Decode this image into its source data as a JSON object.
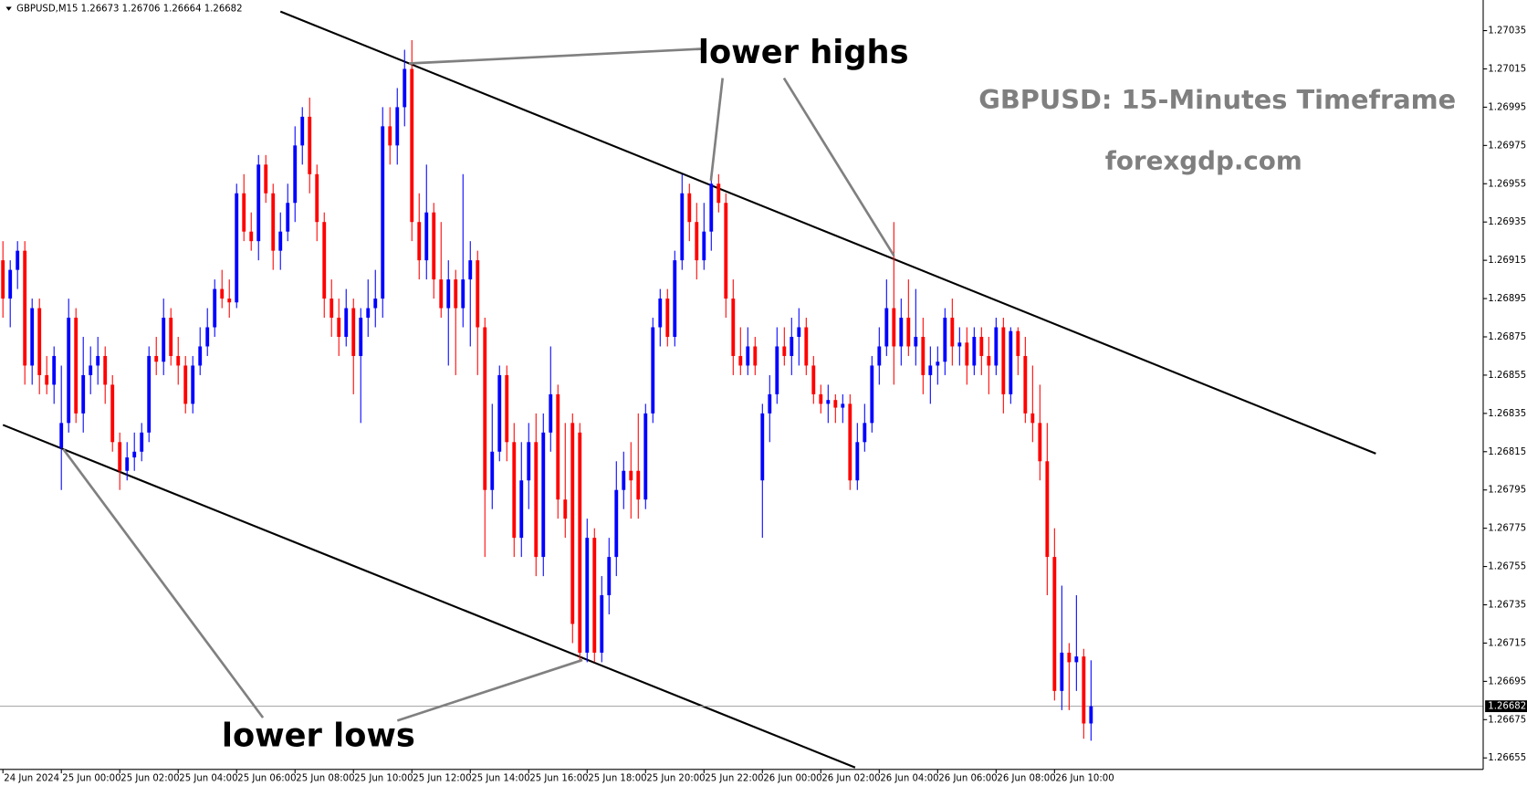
{
  "chart_data": {
    "type": "candlestick",
    "header": "GBPUSD,M15  1.26673 1.26706 1.26664 1.26682",
    "title": "GBPUSD: 15-Minutes Timeframe",
    "subtitle": "forexgdp.com",
    "annotations": [
      "lower highs",
      "lower lows"
    ],
    "up_color": "#0000ff",
    "down_color": "#ff0000",
    "categories": [
      "24 Jun 2024",
      null,
      null,
      null,
      null,
      null,
      null,
      null,
      "25 Jun 00:00",
      null,
      null,
      null,
      null,
      null,
      null,
      null,
      "25 Jun 02:00",
      null,
      null,
      null,
      null,
      null,
      null,
      null,
      "25 Jun 04:00",
      null,
      null,
      null,
      null,
      null,
      null,
      null,
      "25 Jun 06:00",
      null,
      null,
      null,
      null,
      null,
      null,
      null,
      "25 Jun 08:00",
      null,
      null,
      null,
      null,
      null,
      null,
      null,
      "25 Jun 10:00",
      null,
      null,
      null,
      null,
      null,
      null,
      null,
      "25 Jun 12:00",
      null,
      null,
      null,
      null,
      null,
      null,
      null,
      "25 Jun 14:00",
      null,
      null,
      null,
      null,
      null,
      null,
      null,
      "25 Jun 16:00",
      null,
      null,
      null,
      null,
      null,
      null,
      null,
      "25 Jun 18:00",
      null,
      null,
      null,
      null,
      null,
      null,
      null,
      "25 Jun 20:00",
      null,
      null,
      null,
      null,
      null,
      null,
      null,
      "25 Jun 22:00",
      null,
      null,
      null,
      null,
      null,
      null,
      null,
      "26 Jun 00:00",
      null,
      null,
      null,
      null,
      null,
      null,
      null,
      "26 Jun 02:00",
      null,
      null,
      null,
      null,
      null,
      null,
      null,
      "26 Jun 04:00",
      null,
      null,
      null,
      null,
      null,
      null,
      null,
      "26 Jun 06:00",
      null,
      null,
      null,
      null,
      null,
      null,
      null,
      "26 Jun 08:00",
      null,
      null,
      null,
      null,
      null,
      null,
      null,
      "26 Jun 10:00",
      null,
      null,
      null,
      null,
      null
    ],
    "ohlc": [
      [
        1.26915,
        1.26925,
        1.26885,
        1.26895
      ],
      [
        1.26895,
        1.26915,
        1.2688,
        1.2691
      ],
      [
        1.2691,
        1.26925,
        1.269,
        1.2692
      ],
      [
        1.2692,
        1.26925,
        1.2685,
        1.2686
      ],
      [
        1.2686,
        1.26895,
        1.2685,
        1.2689
      ],
      [
        1.2689,
        1.26895,
        1.26845,
        1.26855
      ],
      [
        1.26855,
        1.26865,
        1.26845,
        1.2685
      ],
      [
        1.2685,
        1.2687,
        1.2684,
        1.26865
      ],
      [
        1.26817,
        1.2686,
        1.26795,
        1.2683
      ],
      [
        1.2683,
        1.26895,
        1.26825,
        1.26885
      ],
      [
        1.26885,
        1.2689,
        1.2683,
        1.26835
      ],
      [
        1.26835,
        1.26875,
        1.26825,
        1.26855
      ],
      [
        1.26855,
        1.2687,
        1.26845,
        1.2686
      ],
      [
        1.2686,
        1.26875,
        1.2685,
        1.26865
      ],
      [
        1.26865,
        1.2687,
        1.2684,
        1.2685
      ],
      [
        1.2685,
        1.26855,
        1.26815,
        1.2682
      ],
      [
        1.2682,
        1.26825,
        1.26795,
        1.26805
      ],
      [
        1.26805,
        1.2682,
        1.268,
        1.26812
      ],
      [
        1.26812,
        1.26825,
        1.26805,
        1.26815
      ],
      [
        1.26815,
        1.2683,
        1.2681,
        1.26825
      ],
      [
        1.26825,
        1.2687,
        1.2682,
        1.26865
      ],
      [
        1.26865,
        1.26875,
        1.26855,
        1.26862
      ],
      [
        1.26862,
        1.26895,
        1.26855,
        1.26885
      ],
      [
        1.26885,
        1.2689,
        1.2686,
        1.26865
      ],
      [
        1.26865,
        1.26875,
        1.2685,
        1.2686
      ],
      [
        1.2686,
        1.26865,
        1.26835,
        1.2684
      ],
      [
        1.2684,
        1.26865,
        1.26835,
        1.2686
      ],
      [
        1.2686,
        1.2688,
        1.26855,
        1.2687
      ],
      [
        1.2687,
        1.2689,
        1.26865,
        1.2688
      ],
      [
        1.2688,
        1.26905,
        1.26875,
        1.269
      ],
      [
        1.269,
        1.2691,
        1.2689,
        1.26895
      ],
      [
        1.26895,
        1.26905,
        1.26885,
        1.26893
      ],
      [
        1.26893,
        1.26955,
        1.2689,
        1.2695
      ],
      [
        1.2695,
        1.2696,
        1.26925,
        1.2693
      ],
      [
        1.2693,
        1.2694,
        1.2692,
        1.26925
      ],
      [
        1.26925,
        1.2697,
        1.26915,
        1.26965
      ],
      [
        1.26965,
        1.2697,
        1.26945,
        1.2695
      ],
      [
        1.2695,
        1.26955,
        1.2691,
        1.2692
      ],
      [
        1.2692,
        1.2694,
        1.2691,
        1.2693
      ],
      [
        1.2693,
        1.26955,
        1.26925,
        1.26945
      ],
      [
        1.26945,
        1.26985,
        1.26935,
        1.26975
      ],
      [
        1.26975,
        1.26995,
        1.26965,
        1.2699
      ],
      [
        1.2699,
        1.27,
        1.2695,
        1.2696
      ],
      [
        1.2696,
        1.26965,
        1.26925,
        1.26935
      ],
      [
        1.26935,
        1.2694,
        1.26885,
        1.26895
      ],
      [
        1.26895,
        1.26905,
        1.26875,
        1.26885
      ],
      [
        1.26885,
        1.26895,
        1.26865,
        1.26875
      ],
      [
        1.26875,
        1.269,
        1.2687,
        1.2689
      ],
      [
        1.2689,
        1.26895,
        1.26845,
        1.26865
      ],
      [
        1.26865,
        1.2689,
        1.2683,
        1.26885
      ],
      [
        1.26885,
        1.26905,
        1.26875,
        1.2689
      ],
      [
        1.2689,
        1.2691,
        1.2688,
        1.26895
      ],
      [
        1.26895,
        1.26995,
        1.26885,
        1.26985
      ],
      [
        1.26985,
        1.26995,
        1.26965,
        1.26975
      ],
      [
        1.26975,
        1.27005,
        1.26965,
        1.26995
      ],
      [
        1.26995,
        1.27025,
        1.26985,
        1.27015
      ],
      [
        1.27015,
        1.2703,
        1.26925,
        1.26935
      ],
      [
        1.26935,
        1.2695,
        1.26905,
        1.26915
      ],
      [
        1.26915,
        1.26965,
        1.26905,
        1.2694
      ],
      [
        1.2694,
        1.26945,
        1.26895,
        1.26905
      ],
      [
        1.26905,
        1.26935,
        1.26885,
        1.2689
      ],
      [
        1.2689,
        1.26915,
        1.2686,
        1.26905
      ],
      [
        1.26905,
        1.2691,
        1.26855,
        1.2689
      ],
      [
        1.2689,
        1.2696,
        1.2688,
        1.26905
      ],
      [
        1.26905,
        1.26925,
        1.2687,
        1.26915
      ],
      [
        1.26915,
        1.2692,
        1.26855,
        1.2688
      ],
      [
        1.2688,
        1.26885,
        1.2676,
        1.26795
      ],
      [
        1.26795,
        1.2684,
        1.26785,
        1.26815
      ],
      [
        1.26815,
        1.2686,
        1.2681,
        1.26855
      ],
      [
        1.26855,
        1.2686,
        1.2681,
        1.2682
      ],
      [
        1.2682,
        1.2683,
        1.2676,
        1.2677
      ],
      [
        1.2677,
        1.2682,
        1.2676,
        1.268
      ],
      [
        1.268,
        1.2683,
        1.26785,
        1.2682
      ],
      [
        1.2682,
        1.26835,
        1.2675,
        1.2676
      ],
      [
        1.2676,
        1.26835,
        1.2675,
        1.26825
      ],
      [
        1.26825,
        1.2687,
        1.26815,
        1.26845
      ],
      [
        1.26845,
        1.2685,
        1.2678,
        1.2679
      ],
      [
        1.2679,
        1.2683,
        1.2677,
        1.2678
      ],
      [
        1.2683,
        1.26835,
        1.26715,
        1.26725
      ],
      [
        1.26825,
        1.2683,
        1.26705,
        1.2671
      ],
      [
        1.2671,
        1.2678,
        1.26705,
        1.2677
      ],
      [
        1.2677,
        1.26775,
        1.26705,
        1.2671
      ],
      [
        1.2671,
        1.2675,
        1.26705,
        1.2674
      ],
      [
        1.2674,
        1.2677,
        1.2673,
        1.2676
      ],
      [
        1.2676,
        1.2681,
        1.2675,
        1.26795
      ],
      [
        1.26795,
        1.26815,
        1.26785,
        1.26805
      ],
      [
        1.26805,
        1.2682,
        1.2678,
        1.268
      ],
      [
        1.26805,
        1.26835,
        1.2678,
        1.2679
      ],
      [
        1.2679,
        1.2684,
        1.26785,
        1.26835
      ],
      [
        1.26835,
        1.26885,
        1.2683,
        1.2688
      ],
      [
        1.2688,
        1.269,
        1.2687,
        1.26895
      ],
      [
        1.26895,
        1.269,
        1.2687,
        1.26875
      ],
      [
        1.26875,
        1.2692,
        1.2687,
        1.26915
      ],
      [
        1.26915,
        1.2696,
        1.2691,
        1.2695
      ],
      [
        1.2695,
        1.26955,
        1.26925,
        1.26935
      ],
      [
        1.26935,
        1.26945,
        1.26905,
        1.26915
      ],
      [
        1.26915,
        1.26945,
        1.2691,
        1.2693
      ],
      [
        1.2693,
        1.2696,
        1.2692,
        1.26955
      ],
      [
        1.26955,
        1.2696,
        1.2694,
        1.26945
      ],
      [
        1.26945,
        1.2695,
        1.26885,
        1.26895
      ],
      [
        1.26895,
        1.26905,
        1.26855,
        1.26865
      ],
      [
        1.26865,
        1.2688,
        1.26855,
        1.2686
      ],
      [
        1.2686,
        1.2688,
        1.26855,
        1.2687
      ],
      [
        1.2687,
        1.26875,
        1.26855,
        1.2686
      ],
      [
        1.268,
        1.2684,
        1.2677,
        1.26835
      ],
      [
        1.26835,
        1.26855,
        1.2682,
        1.26845
      ],
      [
        1.26845,
        1.2688,
        1.2684,
        1.2687
      ],
      [
        1.2687,
        1.2688,
        1.2686,
        1.26865
      ],
      [
        1.26865,
        1.26885,
        1.26855,
        1.26875
      ],
      [
        1.26875,
        1.2689,
        1.2686,
        1.2688
      ],
      [
        1.2688,
        1.26885,
        1.26855,
        1.2686
      ],
      [
        1.2686,
        1.26865,
        1.2684,
        1.26845
      ],
      [
        1.26845,
        1.2685,
        1.26835,
        1.2684
      ],
      [
        1.2684,
        1.2685,
        1.2683,
        1.26842
      ],
      [
        1.26842,
        1.26845,
        1.2683,
        1.26838
      ],
      [
        1.26838,
        1.26845,
        1.2683,
        1.2684
      ],
      [
        1.2684,
        1.26845,
        1.26795,
        1.268
      ],
      [
        1.268,
        1.2683,
        1.26795,
        1.2682
      ],
      [
        1.2682,
        1.2684,
        1.26815,
        1.2683
      ],
      [
        1.2683,
        1.26865,
        1.26825,
        1.2686
      ],
      [
        1.2686,
        1.2688,
        1.2685,
        1.2687
      ],
      [
        1.2687,
        1.26905,
        1.26865,
        1.2689
      ],
      [
        1.2689,
        1.26935,
        1.2685,
        1.2687
      ],
      [
        1.2687,
        1.26895,
        1.2686,
        1.26885
      ],
      [
        1.26885,
        1.26905,
        1.26865,
        1.2687
      ],
      [
        1.2687,
        1.269,
        1.2686,
        1.26875
      ],
      [
        1.26875,
        1.26885,
        1.26845,
        1.26855
      ],
      [
        1.26855,
        1.2687,
        1.2684,
        1.2686
      ],
      [
        1.2686,
        1.2687,
        1.2685,
        1.26862
      ],
      [
        1.26862,
        1.2689,
        1.26855,
        1.26885
      ],
      [
        1.26885,
        1.26895,
        1.2686,
        1.2687
      ],
      [
        1.2687,
        1.2688,
        1.2686,
        1.26872
      ],
      [
        1.26872,
        1.2688,
        1.2685,
        1.2686
      ],
      [
        1.2686,
        1.2688,
        1.26855,
        1.26875
      ],
      [
        1.26875,
        1.2688,
        1.26855,
        1.26865
      ],
      [
        1.26865,
        1.26875,
        1.26845,
        1.2686
      ],
      [
        1.2686,
        1.26885,
        1.26855,
        1.2688
      ],
      [
        1.2688,
        1.26885,
        1.26835,
        1.26845
      ],
      [
        1.26845,
        1.2688,
        1.2684,
        1.26878
      ],
      [
        1.26878,
        1.2688,
        1.26855,
        1.26865
      ],
      [
        1.26865,
        1.26875,
        1.2683,
        1.26835
      ],
      [
        1.26835,
        1.2686,
        1.2682,
        1.2683
      ],
      [
        1.2683,
        1.2685,
        1.268,
        1.2681
      ],
      [
        1.2681,
        1.2683,
        1.2674,
        1.2676
      ],
      [
        1.2676,
        1.26775,
        1.26685,
        1.2669
      ],
      [
        1.2669,
        1.26745,
        1.2668,
        1.2671
      ],
      [
        1.2671,
        1.26715,
        1.2668,
        1.26705
      ],
      [
        1.26705,
        1.2674,
        1.2669,
        1.26708
      ],
      [
        1.26708,
        1.26712,
        1.26665,
        1.26673
      ],
      [
        1.26673,
        1.26706,
        1.26664,
        1.26682
      ]
    ],
    "current_price": 1.26682,
    "trendlines": [
      {
        "x": [
          38,
          188
        ],
        "y": [
          1.27045,
          1.26814
        ]
      },
      {
        "x": [
          0,
          116.7
        ],
        "y": [
          1.26829,
          1.2665
        ]
      }
    ],
    "xlim": [
      -0.4,
      202.7
    ],
    "ylim": [
      1.26649,
      1.27051
    ],
    "yticks": [
      1.27035,
      1.27015,
      1.26995,
      1.26975,
      1.26955,
      1.26935,
      1.26915,
      1.26895,
      1.26875,
      1.26855,
      1.26835,
      1.26815,
      1.26795,
      1.26775,
      1.26755,
      1.26735,
      1.26715,
      1.26695,
      1.26675,
      1.26655
    ]
  }
}
